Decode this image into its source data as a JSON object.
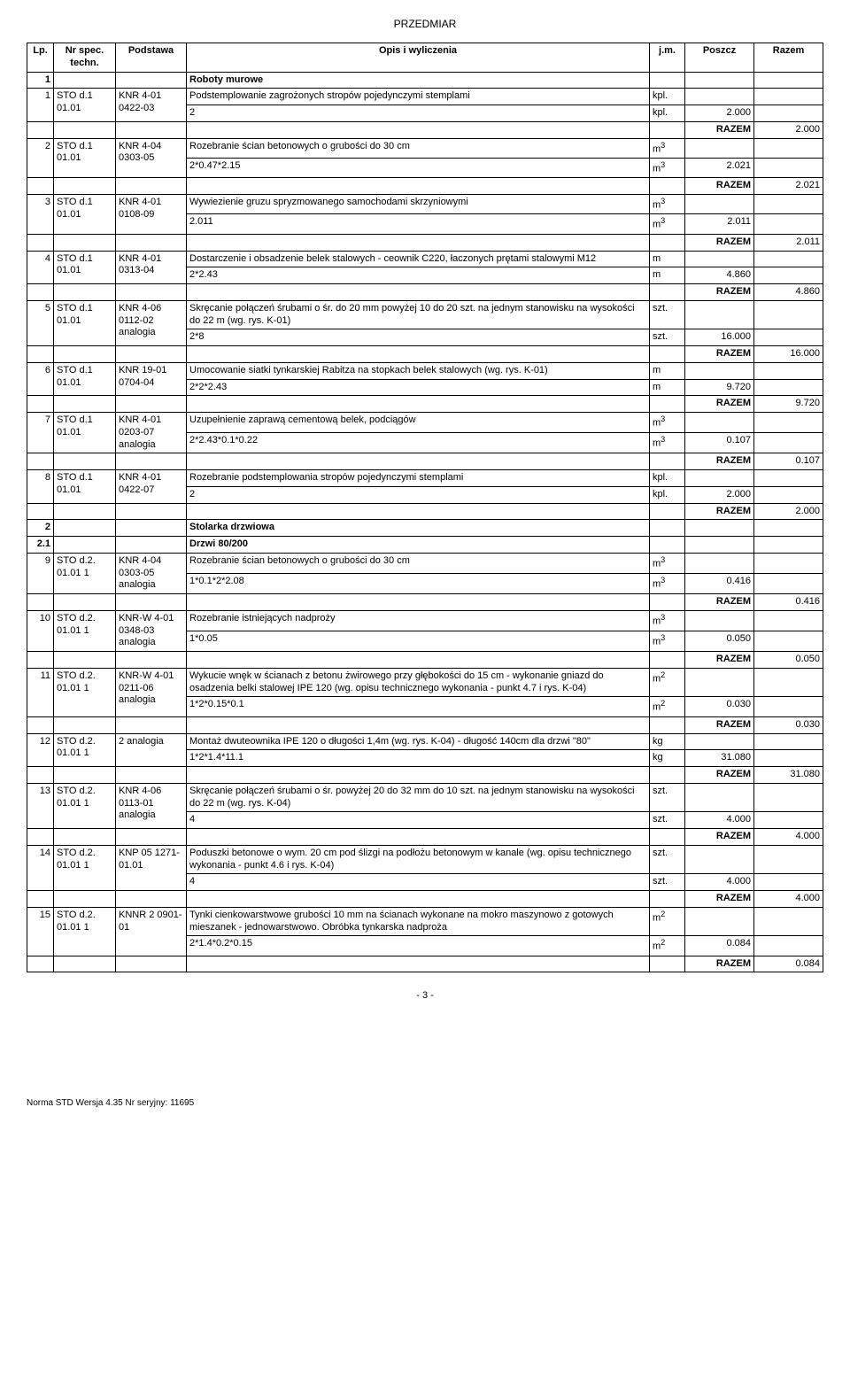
{
  "title": "PRZEDMIAR",
  "header": {
    "lp": "Lp.",
    "nr": "Nr spec. techn.",
    "podstawa": "Podstawa",
    "opis": "Opis i wyliczenia",
    "jm": "j.m.",
    "poszcz": "Poszcz",
    "razem": "Razem"
  },
  "razem_label": "RAZEM",
  "sections": [
    {
      "lp": "1",
      "title": "Roboty murowe"
    },
    {
      "lp": "2",
      "title": "Stolarka drzwiowa"
    },
    {
      "lp": "2.1",
      "title": "Drzwi 80/200"
    }
  ],
  "rows": [
    {
      "lp": "1",
      "nr": "STO d.1 01.01",
      "pod": "KNR 4-01 0422-03",
      "opis": "Podstemplowanie zagrożonych stropów pojedynczymi stemplami",
      "jm": "kpl.",
      "wyl": [
        {
          "expr": "2",
          "jm": "kpl.",
          "val": "2.000"
        }
      ],
      "razem": "2.000"
    },
    {
      "lp": "2",
      "nr": "STO d.1 01.01",
      "pod": "KNR 4-04 0303-05",
      "opis": "Rozebranie ścian betonowych o grubości do 30 cm",
      "jm": "m3",
      "wyl": [
        {
          "expr": "2*0.47*2.15",
          "jm": "m3",
          "val": "2.021"
        }
      ],
      "razem": "2.021"
    },
    {
      "lp": "3",
      "nr": "STO d.1 01.01",
      "pod": "KNR 4-01 0108-09",
      "opis": "Wywiezienie gruzu spryzmowanego samochodami skrzyniowymi",
      "jm": "m3",
      "wyl": [
        {
          "expr": "2.011",
          "jm": "m3",
          "val": "2.011"
        }
      ],
      "razem": "2.011"
    },
    {
      "lp": "4",
      "nr": "STO d.1 01.01",
      "pod": "KNR 4-01 0313-04",
      "opis": "Dostarczenie i obsadzenie belek stalowych - ceownik C220, łaczonych prętami stalowymi M12",
      "jm": "m",
      "wyl": [
        {
          "expr": "2*2.43",
          "jm": "m",
          "val": "4.860"
        }
      ],
      "razem": "4.860"
    },
    {
      "lp": "5",
      "nr": "STO d.1 01.01",
      "pod": "KNR 4-06 0112-02 analogia",
      "opis": "Skręcanie połączeń śrubami o śr. do 20 mm powyżej 10 do 20 szt. na jednym stanowisku na wysokości do 22 m (wg. rys. K-01)",
      "jm": "szt.",
      "wyl": [
        {
          "expr": "2*8",
          "jm": "szt.",
          "val": "16.000"
        }
      ],
      "razem": "16.000"
    },
    {
      "lp": "6",
      "nr": "STO d.1 01.01",
      "pod": "KNR 19-01 0704-04",
      "opis": "Umocowanie siatki tynkarskiej Rabitza na stopkach belek stalowych (wg. rys. K-01)",
      "jm": "m",
      "wyl": [
        {
          "expr": "2*2*2.43",
          "jm": "m",
          "val": "9.720"
        }
      ],
      "razem": "9.720"
    },
    {
      "lp": "7",
      "nr": "STO d.1 01.01",
      "pod": "KNR 4-01 0203-07 analogia",
      "opis": "Uzupełnienie zaprawą cementową belek, podciągów",
      "jm": "m3",
      "wyl": [
        {
          "expr": "2*2.43*0.1*0.22",
          "jm": "m3",
          "val": "0.107"
        }
      ],
      "razem": "0.107"
    },
    {
      "lp": "8",
      "nr": "STO d.1 01.01",
      "pod": "KNR 4-01 0422-07",
      "opis": "Rozebranie podstemplowania stropów pojedynczymi stemplami",
      "jm": "kpl.",
      "wyl": [
        {
          "expr": "2",
          "jm": "kpl.",
          "val": "2.000"
        }
      ],
      "razem": "2.000"
    },
    {
      "lp": "9",
      "nr": "STO d.2. 01.01 1",
      "pod": "KNR 4-04 0303-05 analogia",
      "opis": "Rozebranie ścian betonowych o grubości do 30 cm",
      "jm": "m3",
      "wyl": [
        {
          "expr": "1*0.1*2*2.08",
          "jm": "m3",
          "val": "0.416"
        }
      ],
      "razem": "0.416"
    },
    {
      "lp": "10",
      "nr": "STO d.2. 01.01 1",
      "pod": "KNR-W 4-01 0348-03 analogia",
      "opis": "Rozebranie istniejących nadproży",
      "jm": "m3",
      "wyl": [
        {
          "expr": "1*0.05",
          "jm": "m3",
          "val": "0.050"
        }
      ],
      "razem": "0.050"
    },
    {
      "lp": "11",
      "nr": "STO d.2. 01.01 1",
      "pod": "KNR-W 4-01 0211-06 analogia",
      "opis": "Wykucie wnęk w ścianach z betonu żwirowego przy głębokości do 15 cm - wykonanie gniazd do osadzenia belki stalowej IPE 120 (wg. opisu technicznego wykonania - punkt 4.7 i rys. K-04)",
      "jm": "m2",
      "wyl": [
        {
          "expr": "1*2*0.15*0.1",
          "jm": "m2",
          "val": "0.030"
        }
      ],
      "razem": "0.030"
    },
    {
      "lp": "12",
      "nr": "STO d.2. 01.01 1",
      "pod": "2 analogia",
      "opis": "Montaż dwuteownika IPE 120 o długości 1,4m (wg. rys. K-04) - długość 140cm dla drzwi \"80\"",
      "jm": "kg",
      "wyl": [
        {
          "expr": "1*2*1.4*11.1",
          "jm": "kg",
          "val": "31.080"
        }
      ],
      "razem": "31.080"
    },
    {
      "lp": "13",
      "nr": "STO d.2. 01.01 1",
      "pod": "KNR 4-06 0113-01 analogia",
      "opis": "Skręcanie połączeń śrubami o śr. powyżej 20 do 32 mm do 10 szt. na jednym stanowisku na wysokości do 22 m (wg. rys. K-04)",
      "jm": "szt.",
      "wyl": [
        {
          "expr": "4",
          "jm": "szt.",
          "val": "4.000"
        }
      ],
      "razem": "4.000"
    },
    {
      "lp": "14",
      "nr": "STO d.2. 01.01 1",
      "pod": "KNP 05 1271-01.01",
      "opis": "Poduszki betonowe o wym. 20 cm pod ślizgi na podłożu betonowym w kanale (wg. opisu technicznego wykonania - punkt 4.6 i rys. K-04)",
      "jm": "szt.",
      "wyl": [
        {
          "expr": "4",
          "jm": "szt.",
          "val": "4.000"
        }
      ],
      "razem": "4.000"
    },
    {
      "lp": "15",
      "nr": "STO d.2. 01.01 1",
      "pod": "KNNR 2 0901-01",
      "opis": "Tynki cienkowarstwowe grubości 10 mm na ścianach wykonane na mokro maszynowo z gotowych mieszanek - jednowarstwowo. Obróbka tynkarska nadproża",
      "jm": "m2",
      "wyl": [
        {
          "expr": "2*1.4*0.2*0.15",
          "jm": "m2",
          "val": "0.084"
        }
      ],
      "razem": "0.084"
    }
  ],
  "pagenum": "- 3 -",
  "footer": "Norma STD Wersja 4.35 Nr seryjny: 11695"
}
